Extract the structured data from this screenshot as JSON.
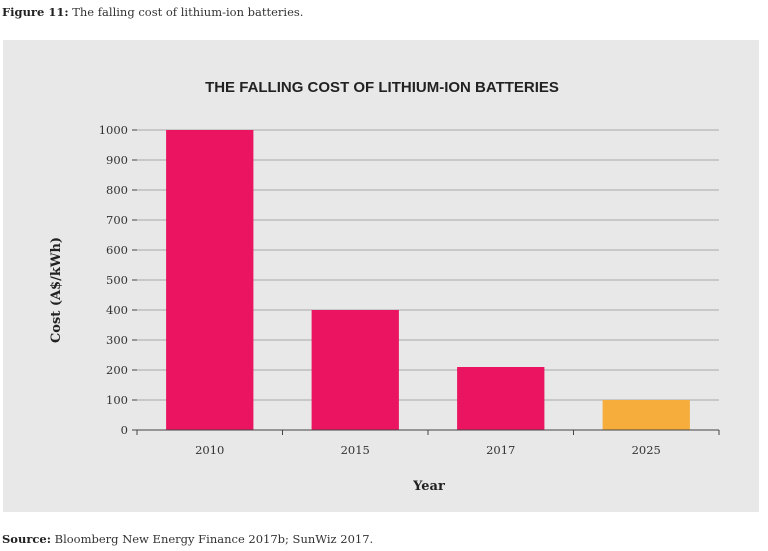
{
  "figure_caption": {
    "label": "Figure 11:",
    "text": "The falling cost of lithium-ion batteries."
  },
  "source_note": {
    "label": "Source:",
    "text": "Bloomberg New Energy Finance 2017b; SunWiz 2017."
  },
  "colors": {
    "panel_background": "#e8e8e8",
    "bar_primary": "#ea1460",
    "bar_highlight": "#f6ad3c",
    "gridline": "#a8a8a8"
  },
  "chart_data": {
    "type": "bar",
    "title": "THE FALLING COST OF LITHIUM-ION BATTERIES",
    "xlabel": "Year",
    "ylabel": "Cost (A$/kWh)",
    "categories": [
      "2010",
      "2015",
      "2017",
      "2025"
    ],
    "values": [
      1000,
      400,
      210,
      100
    ],
    "bar_colors": [
      "#ea1460",
      "#ea1460",
      "#ea1460",
      "#f6ad3c"
    ],
    "ylim": [
      0,
      1000
    ],
    "yticks": [
      0,
      100,
      200,
      300,
      400,
      500,
      600,
      700,
      800,
      900,
      1000
    ],
    "grid": true,
    "legend": "none"
  }
}
